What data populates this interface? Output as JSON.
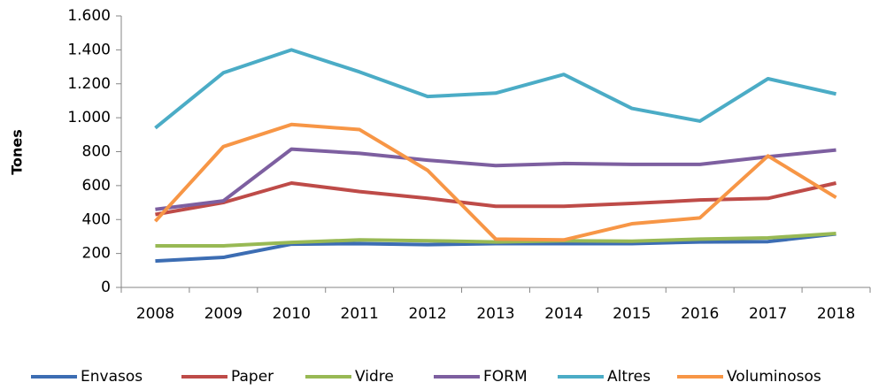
{
  "chart_data": {
    "type": "line",
    "ylabel": "Tones",
    "categories": [
      "2008",
      "2009",
      "2010",
      "2011",
      "2012",
      "2013",
      "2014",
      "2015",
      "2016",
      "2017",
      "2018"
    ],
    "series": [
      {
        "name": "Envasos",
        "color": "#3c6db3",
        "values": [
          156,
          177,
          255,
          258,
          252,
          258,
          258,
          258,
          268,
          270,
          315
        ]
      },
      {
        "name": "Paper",
        "color": "#be4b48",
        "values": [
          430,
          500,
          615,
          565,
          525,
          478,
          478,
          495,
          515,
          525,
          615
        ]
      },
      {
        "name": "Vidre",
        "color": "#98b954",
        "values": [
          245,
          245,
          265,
          280,
          275,
          268,
          275,
          272,
          285,
          292,
          318
        ]
      },
      {
        "name": "FORM",
        "color": "#7d5fa0",
        "values": [
          460,
          510,
          815,
          790,
          750,
          718,
          730,
          725,
          725,
          770,
          810
        ]
      },
      {
        "name": "Altres",
        "color": "#4bacc6",
        "values": [
          940,
          1265,
          1400,
          1270,
          1125,
          1145,
          1255,
          1055,
          980,
          1230,
          1140
        ]
      },
      {
        "name": "Voluminosos",
        "color": "#f79646",
        "values": [
          390,
          830,
          960,
          930,
          690,
          285,
          280,
          375,
          410,
          775,
          530
        ]
      }
    ],
    "ylim": [
      0,
      1600
    ],
    "yticks": [
      0,
      200,
      400,
      600,
      800,
      {
        "value": 1000,
        "label": "1.000"
      },
      {
        "value": 1200,
        "label": "1.200"
      },
      {
        "value": 1400,
        "label": "1.400"
      },
      {
        "value": 1600,
        "label": "1.600"
      }
    ],
    "grid": false,
    "legend": "bottom"
  }
}
